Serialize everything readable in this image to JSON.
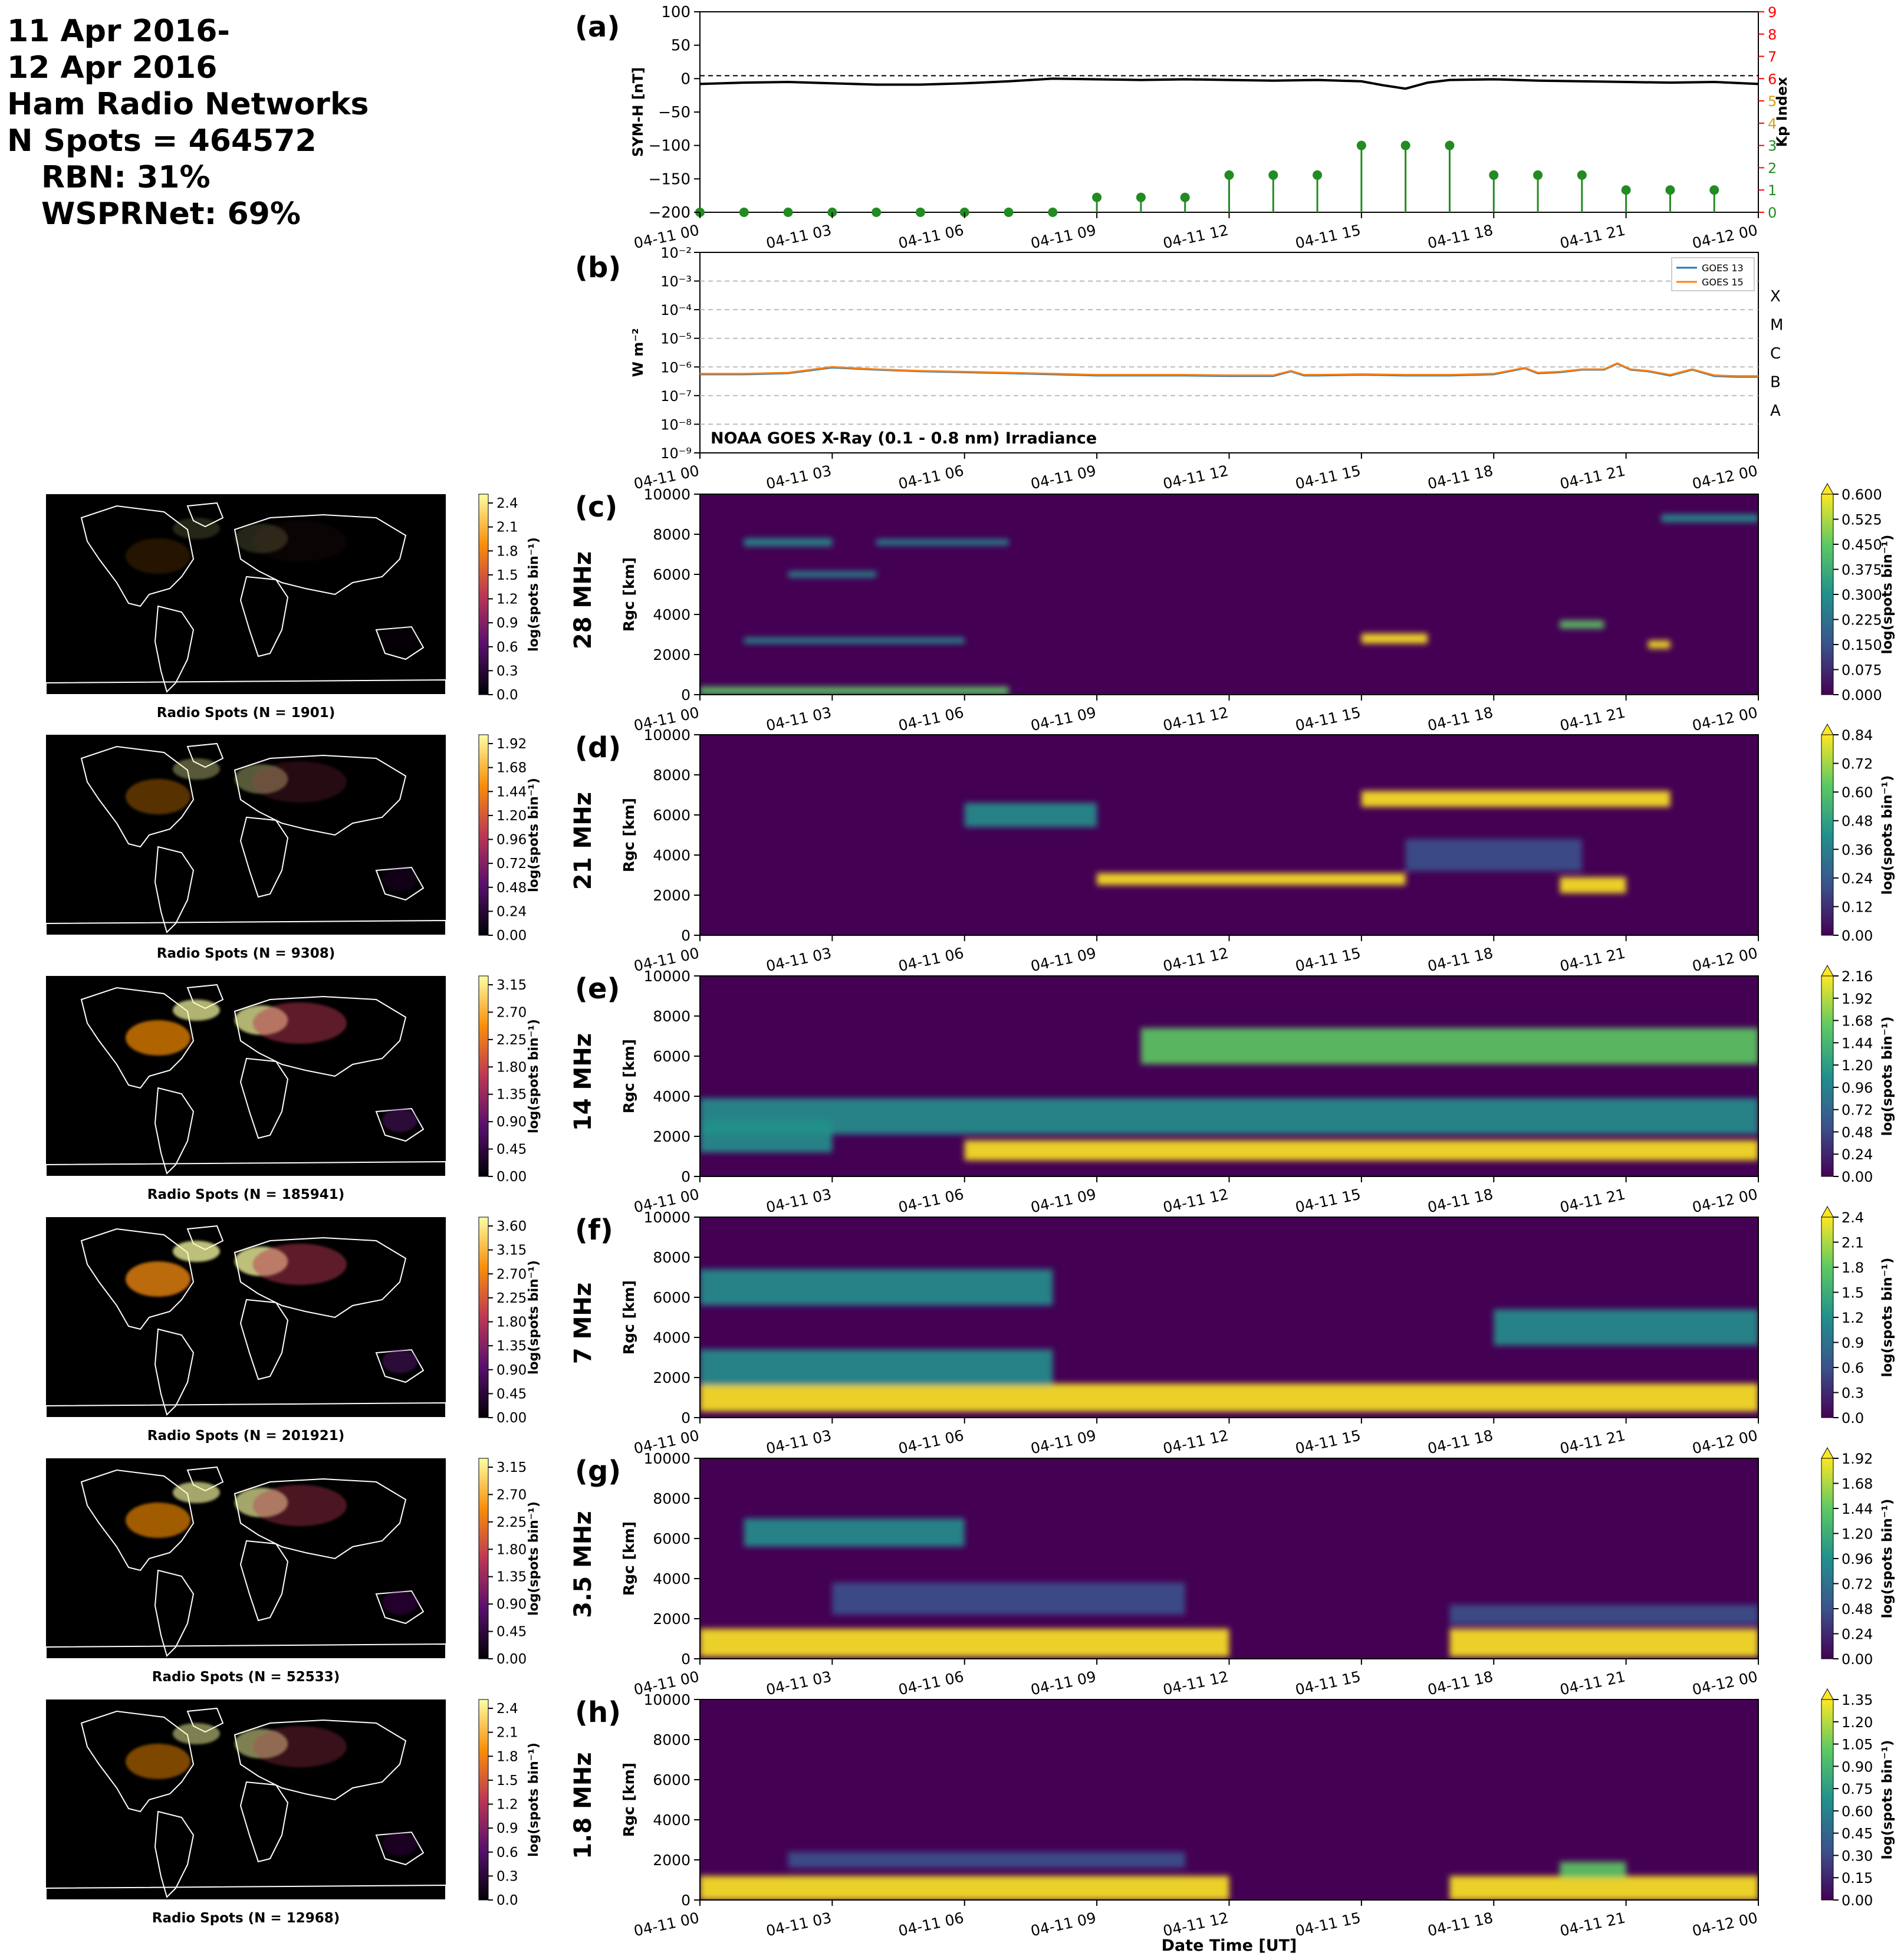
{
  "header": {
    "date_line1": "11 Apr 2016-",
    "date_line2": "12 Apr 2016",
    "networks": "Ham Radio Networks",
    "n_spots": "N Spots = 464572",
    "rbn": "RBN: 31%",
    "wsprnet": "WSPRNet: 69%"
  },
  "time_ticks": [
    "04-11 00",
    "04-11 03",
    "04-11 06",
    "04-11 09",
    "04-11 12",
    "04-11 15",
    "04-11 18",
    "04-11 21",
    "04-12 00"
  ],
  "xlabel_bottom": "Date Time [UT]",
  "colors": {
    "symh": "#000000",
    "kp": "#228B22",
    "kp_axis": "#ff0000",
    "goes13": "#1f77b4",
    "goes15": "#ff7f0e"
  },
  "chart_data": [
    {
      "panel": "(a)",
      "type": "line",
      "ylabel": "SYM-H [nT]",
      "y2label": "Kp Index",
      "ylim": [
        -200,
        100
      ],
      "y2lim": [
        0,
        9
      ],
      "yticks": [
        "100",
        "50",
        "0",
        "−50",
        "−100",
        "−150",
        "−200"
      ],
      "y2ticks": [
        "9",
        "8",
        "7",
        "6",
        "5",
        "4",
        "3",
        "2",
        "1",
        "0"
      ],
      "symh": {
        "hours": [
          0,
          1,
          2,
          3,
          4,
          5,
          6,
          7,
          8,
          9,
          10,
          11,
          12,
          13,
          14,
          15,
          15.5,
          16,
          16.5,
          17,
          18,
          19,
          20,
          21,
          22,
          23,
          24
        ],
        "values": [
          -8,
          -6,
          -5,
          -7,
          -9,
          -9,
          -7,
          -4,
          0,
          -1,
          -2,
          -1,
          -2,
          -3,
          -2,
          -4,
          -10,
          -15,
          -6,
          -2,
          -1,
          -3,
          -4,
          -5,
          -6,
          -5,
          -8
        ]
      },
      "kp": {
        "hours": [
          0,
          1,
          2,
          3,
          4,
          5,
          6,
          7,
          8,
          9,
          10,
          11,
          12,
          13,
          14,
          15,
          16,
          17,
          18,
          19,
          20,
          21,
          22,
          23
        ],
        "values": [
          0,
          0,
          0,
          0,
          0,
          0,
          0,
          0,
          0,
          0.67,
          0.67,
          0.67,
          1.67,
          1.67,
          1.67,
          3,
          3,
          3,
          1.67,
          1.67,
          1.67,
          1,
          1,
          1
        ]
      }
    },
    {
      "panel": "(b)",
      "type": "line",
      "ylabel": "W m⁻²",
      "scale": "log",
      "ylim": [
        1e-09,
        0.01
      ],
      "yticks": [
        "10⁻²",
        "10⁻³",
        "10⁻⁴",
        "10⁻⁵",
        "10⁻⁶",
        "10⁻⁷",
        "10⁻⁸",
        "10⁻⁹"
      ],
      "flare_classes": [
        "X",
        "M",
        "C",
        "B",
        "A"
      ],
      "annotation": "NOAA GOES X-Ray (0.1 - 0.8 nm) Irradiance",
      "series": [
        {
          "name": "GOES 13",
          "hours": [
            0,
            1,
            2,
            3,
            4,
            5,
            6,
            7,
            8,
            9,
            10,
            11,
            12,
            13,
            13.4,
            13.7,
            14,
            15,
            16,
            17,
            18,
            18.7,
            19,
            19.5,
            20,
            20.5,
            20.8,
            21.1,
            21.5,
            22,
            22.5,
            23,
            23.5,
            24
          ],
          "values": [
            5.5e-07,
            5.5e-07,
            6e-07,
            9.5e-07,
            8e-07,
            7e-07,
            6.5e-07,
            6e-07,
            5.5e-07,
            5e-07,
            5e-07,
            5e-07,
            4.8e-07,
            4.8e-07,
            7e-07,
            5e-07,
            5e-07,
            5.3e-07,
            5e-07,
            5e-07,
            5.5e-07,
            9e-07,
            6e-07,
            6.5e-07,
            8e-07,
            8e-07,
            1.3e-06,
            8e-07,
            7e-07,
            5e-07,
            8e-07,
            4.8e-07,
            4.5e-07,
            4.5e-07
          ]
        },
        {
          "name": "GOES 15",
          "hours": [
            0,
            1,
            2,
            3,
            4,
            5,
            6,
            7,
            8,
            9,
            10,
            11,
            12,
            13,
            13.4,
            13.7,
            14,
            15,
            16,
            17,
            18,
            18.7,
            19,
            19.5,
            20,
            20.5,
            20.8,
            21.1,
            21.5,
            22,
            22.5,
            23,
            23.5,
            24
          ],
          "values": [
            5.8e-07,
            5.8e-07,
            6.3e-07,
            1e-06,
            8.3e-07,
            7.3e-07,
            6.8e-07,
            6.3e-07,
            5.8e-07,
            5.3e-07,
            5.3e-07,
            5.3e-07,
            5.1e-07,
            5.1e-07,
            7.3e-07,
            5.3e-07,
            5.3e-07,
            5.6e-07,
            5.3e-07,
            5.3e-07,
            5.8e-07,
            9.3e-07,
            6.3e-07,
            6.8e-07,
            8.3e-07,
            8.3e-07,
            1.35e-06,
            8.3e-07,
            7.3e-07,
            5.3e-07,
            8.3e-07,
            5.1e-07,
            4.8e-07,
            4.8e-07
          ]
        }
      ]
    },
    {
      "panel": "(c)",
      "type": "heatmap",
      "band": "28 MHz",
      "ylabel": "R_gc [km]",
      "ylim": [
        0,
        10000
      ],
      "map_caption": "Radio Spots (N = 1901)",
      "map_cbar_ticks": [
        "2.4",
        "2.1",
        "1.8",
        "1.5",
        "1.2",
        "0.9",
        "0.6",
        "0.3",
        "0.0"
      ],
      "cbar_ticks": [
        "0.600",
        "0.525",
        "0.450",
        "0.375",
        "0.300",
        "0.225",
        "0.150",
        "0.075",
        "0.000"
      ],
      "cbar_label": "log(spots bin⁻¹)"
    },
    {
      "panel": "(d)",
      "type": "heatmap",
      "band": "21 MHz",
      "ylabel": "R_gc [km]",
      "ylim": [
        0,
        10000
      ],
      "map_caption": "Radio Spots (N = 9308)",
      "map_cbar_ticks": [
        "1.92",
        "1.68",
        "1.44",
        "1.20",
        "0.96",
        "0.72",
        "0.48",
        "0.24",
        "0.00"
      ],
      "cbar_ticks": [
        "0.84",
        "0.72",
        "0.60",
        "0.48",
        "0.36",
        "0.24",
        "0.12",
        "0.00"
      ],
      "cbar_label": "log(spots bin⁻¹)"
    },
    {
      "panel": "(e)",
      "type": "heatmap",
      "band": "14 MHz",
      "ylabel": "R_gc [km]",
      "ylim": [
        0,
        10000
      ],
      "map_caption": "Radio Spots (N = 185941)",
      "map_cbar_ticks": [
        "3.15",
        "2.70",
        "2.25",
        "1.80",
        "1.35",
        "0.90",
        "0.45",
        "0.00"
      ],
      "cbar_ticks": [
        "2.16",
        "1.92",
        "1.68",
        "1.44",
        "1.20",
        "0.96",
        "0.72",
        "0.48",
        "0.24",
        "0.00"
      ],
      "cbar_label": "log(spots bin⁻¹)"
    },
    {
      "panel": "(f)",
      "type": "heatmap",
      "band": "7 MHz",
      "ylabel": "R_gc [km]",
      "ylim": [
        0,
        10000
      ],
      "map_caption": "Radio Spots (N = 201921)",
      "map_cbar_ticks": [
        "3.60",
        "3.15",
        "2.70",
        "2.25",
        "1.80",
        "1.35",
        "0.90",
        "0.45",
        "0.00"
      ],
      "cbar_ticks": [
        "2.4",
        "2.1",
        "1.8",
        "1.5",
        "1.2",
        "0.9",
        "0.6",
        "0.3",
        "0.0"
      ],
      "cbar_label": "log(spots bin⁻¹)"
    },
    {
      "panel": "(g)",
      "type": "heatmap",
      "band": "3.5 MHz",
      "ylabel": "R_gc [km]",
      "ylim": [
        0,
        10000
      ],
      "map_caption": "Radio Spots (N = 52533)",
      "map_cbar_ticks": [
        "3.15",
        "2.70",
        "2.25",
        "1.80",
        "1.35",
        "0.90",
        "0.45",
        "0.00"
      ],
      "cbar_ticks": [
        "1.92",
        "1.68",
        "1.44",
        "1.20",
        "0.96",
        "0.72",
        "0.48",
        "0.24",
        "0.00"
      ],
      "cbar_label": "log(spots bin⁻¹)"
    },
    {
      "panel": "(h)",
      "type": "heatmap",
      "band": "1.8 MHz",
      "ylabel": "R_gc [km]",
      "ylim": [
        0,
        10000
      ],
      "map_caption": "Radio Spots (N = 12968)",
      "map_cbar_ticks": [
        "2.4",
        "2.1",
        "1.8",
        "1.5",
        "1.2",
        "0.9",
        "0.6",
        "0.3",
        "0.0"
      ],
      "cbar_ticks": [
        "1.35",
        "1.20",
        "1.05",
        "0.90",
        "0.75",
        "0.60",
        "0.45",
        "0.30",
        "0.15",
        "0.00"
      ],
      "cbar_label": "log(spots bin⁻¹)"
    }
  ],
  "yticks_range": [
    "10000",
    "8000",
    "6000",
    "4000",
    "2000",
    "0"
  ]
}
